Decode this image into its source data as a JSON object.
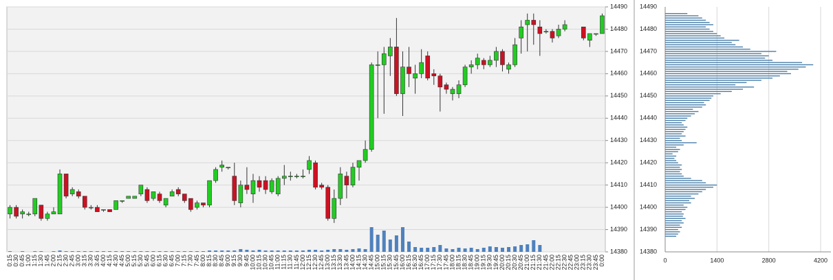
{
  "chart_data": [
    {
      "type": "candlestick",
      "categories": [
        "0:15",
        "0:30",
        "0:45",
        "1:00",
        "1:15",
        "1:30",
        "1:45",
        "2:00",
        "2:15",
        "2:30",
        "2:45",
        "3:00",
        "3:15",
        "3:30",
        "3:45",
        "4:00",
        "4:15",
        "4:30",
        "4:45",
        "5:00",
        "5:15",
        "5:30",
        "5:45",
        "6:00",
        "6:15",
        "6:30",
        "6:45",
        "7:00",
        "7:15",
        "7:30",
        "7:45",
        "8:00",
        "8:15",
        "8:30",
        "8:45",
        "9:00",
        "9:15",
        "9:30",
        "9:45",
        "10:00",
        "10:15",
        "10:30",
        "10:45",
        "11:00",
        "11:15",
        "11:30",
        "11:45",
        "12:00",
        "12:15",
        "12:30",
        "12:45",
        "13:00",
        "13:15",
        "13:30",
        "13:45",
        "14:00",
        "14:15",
        "14:30",
        "14:45",
        "15:00",
        "15:15",
        "15:30",
        "15:45",
        "16:00",
        "16:15",
        "16:30",
        "16:45",
        "17:00",
        "17:15",
        "17:30",
        "17:45",
        "18:00",
        "18:15",
        "18:30",
        "18:45",
        "19:00",
        "19:15",
        "19:30",
        "19:45",
        "20:00",
        "20:15",
        "20:30",
        "20:45",
        "21:00",
        "21:15",
        "21:30",
        "21:45",
        "22:00",
        "22:15",
        "22:30",
        "22:45",
        "23:00",
        "23:15",
        "23:30",
        "23:45",
        "0:00"
      ],
      "open": [
        14397,
        14400,
        14397,
        14397,
        14397,
        14401,
        14395,
        14397,
        14397,
        14415,
        14406,
        14407,
        14405,
        14400,
        14400,
        14399,
        14399,
        14399,
        14403,
        14404,
        14404,
        14406,
        14408,
        14404,
        14406,
        14401,
        14405,
        14408,
        14406,
        14404,
        14400,
        14402,
        14401,
        14412,
        14418,
        14418,
        14414,
        14402,
        14410,
        14406,
        14412,
        14412,
        14407,
        14406,
        14413,
        14414,
        14414,
        14414,
        14417,
        14420,
        14410,
        14409,
        14395,
        14404,
        14414,
        14410,
        14418,
        14421,
        14426,
        14464,
        14464,
        14468,
        14472,
        14451,
        14463,
        14458,
        14460,
        14468,
        14460,
        14459,
        14455,
        14451,
        14451,
        14455,
        14463,
        14464,
        14466,
        14464,
        14466,
        14470,
        14462,
        14464,
        14476,
        14482,
        14484,
        14481,
        14479,
        14479,
        14477,
        14480,
        null,
        null,
        14481,
        14475,
        14478,
        14478
      ],
      "high": [
        14401,
        14401,
        14399,
        14398,
        14404,
        14401,
        14398,
        14400,
        14417,
        14415,
        14409,
        14408,
        14405,
        14401,
        14401,
        14399,
        14399,
        14403,
        14403,
        14405,
        14405,
        14410,
        14409,
        14407,
        14407,
        14404,
        14408,
        14409,
        14406,
        14404,
        14403,
        14402,
        14412,
        14418,
        14421,
        14418,
        14420,
        14412,
        14418,
        14415,
        14414,
        14414,
        14413,
        14414,
        14419,
        14416,
        14415,
        14417,
        14423,
        14421,
        14411,
        14410,
        14408,
        14418,
        14416,
        14420,
        14421,
        14430,
        14465,
        14470,
        14472,
        14476,
        14485,
        14470,
        14472,
        14464,
        14471,
        14470,
        14462,
        14460,
        14456,
        14454,
        14457,
        14464,
        14466,
        14469,
        14467,
        14468,
        14472,
        14471,
        14465,
        14476,
        14484,
        14487,
        14487,
        14484,
        14480,
        14480,
        14482,
        14484,
        null,
        null,
        14481,
        14478,
        14478,
        14487
      ],
      "low": [
        14395,
        14395,
        14395,
        14396,
        14396,
        14394,
        14394,
        14397,
        14397,
        14404,
        14405,
        14404,
        14399,
        14399,
        14398,
        14398,
        14398,
        14399,
        14402,
        14404,
        14404,
        14405,
        14402,
        14403,
        14402,
        14400,
        14405,
        14405,
        14402,
        14398,
        14399,
        14400,
        14400,
        14411,
        14416,
        14417,
        14401,
        14400,
        14406,
        14402,
        14407,
        14406,
        14406,
        14405,
        14410,
        14412,
        14413,
        14413,
        14415,
        14408,
        14408,
        14394,
        14393,
        14401,
        14404,
        14409,
        14412,
        14420,
        14425,
        14440,
        14442,
        14459,
        14450,
        14441,
        14454,
        14451,
        14458,
        14457,
        14455,
        14443,
        14451,
        14448,
        14449,
        14454,
        14460,
        14462,
        14462,
        14463,
        14463,
        14461,
        14460,
        14463,
        14469,
        14470,
        14473,
        14468,
        14478,
        14474,
        14476,
        14479,
        null,
        null,
        14475,
        14472,
        14477,
        14478
      ],
      "close": [
        14400,
        14396,
        14398,
        14397,
        14404,
        14395,
        14397,
        14398,
        14415,
        14405,
        14408,
        14405,
        14400,
        14400,
        14398,
        14399,
        14398,
        14403,
        14403,
        14405,
        14405,
        14410,
        14403,
        14407,
        14403,
        14404,
        14407,
        14406,
        14403,
        14399,
        14402,
        14401,
        14412,
        14417,
        14419,
        14418,
        14403,
        14410,
        14408,
        14412,
        14409,
        14408,
        14412,
        14413,
        14414,
        14414,
        14414,
        14414,
        14421,
        14409,
        14409,
        14395,
        14404,
        14415,
        14410,
        14418,
        14421,
        14426,
        14464,
        14464,
        14469,
        14472,
        14451,
        14463,
        14460,
        14460,
        14465,
        14458,
        14459,
        14454,
        14453,
        14453,
        14455,
        14463,
        14464,
        14467,
        14464,
        14466,
        14470,
        14464,
        14464,
        14473,
        14481,
        14484,
        14482,
        14478,
        14479,
        14476,
        14480,
        14482,
        null,
        null,
        14476,
        14478,
        14478,
        14486
      ],
      "volume": [
        1,
        0,
        1,
        0,
        1,
        1,
        0,
        1,
        2,
        1,
        1,
        1,
        1,
        1,
        1,
        1,
        1,
        1,
        1,
        1,
        1,
        1,
        1,
        1,
        1,
        1,
        1,
        1,
        1,
        1,
        1,
        1,
        2,
        2,
        2,
        2,
        2,
        4,
        3,
        2,
        3,
        2,
        2,
        2,
        2,
        2,
        2,
        2,
        3,
        3,
        2,
        3,
        4,
        4,
        3,
        4,
        5,
        4,
        36,
        25,
        31,
        18,
        24,
        36,
        15,
        7,
        6,
        6,
        7,
        10,
        5,
        4,
        6,
        5,
        6,
        4,
        6,
        8,
        7,
        6,
        7,
        8,
        10,
        11,
        17,
        10,
        0,
        0,
        0,
        0,
        0,
        0,
        0,
        0,
        0,
        0
      ],
      "up_color": "#22cc22",
      "down_color": "#cc1122",
      "volume_color": "#4f81bd",
      "ylim": [
        14380,
        14490
      ],
      "yticks": [
        14380,
        14390,
        14400,
        14410,
        14420,
        14430,
        14440,
        14450,
        14460,
        14470,
        14480,
        14490
      ],
      "grid": true
    },
    {
      "type": "profile",
      "y": [
        14387,
        14388,
        14389,
        14390,
        14391,
        14392,
        14393,
        14394,
        14395,
        14396,
        14397,
        14398,
        14399,
        14400,
        14401,
        14402,
        14403,
        14404,
        14405,
        14406,
        14407,
        14408,
        14409,
        14410,
        14411,
        14412,
        14413,
        14414,
        14415,
        14416,
        14417,
        14418,
        14419,
        14420,
        14421,
        14422,
        14423,
        14424,
        14425,
        14426,
        14427,
        14428,
        14429,
        14430,
        14431,
        14432,
        14433,
        14434,
        14435,
        14436,
        14437,
        14438,
        14439,
        14440,
        14441,
        14442,
        14443,
        14444,
        14445,
        14446,
        14447,
        14448,
        14449,
        14450,
        14451,
        14452,
        14453,
        14454,
        14455,
        14456,
        14457,
        14458,
        14459,
        14460,
        14461,
        14462,
        14463,
        14464,
        14465,
        14466,
        14467,
        14468,
        14469,
        14470,
        14471,
        14472,
        14473,
        14474,
        14475,
        14476,
        14477,
        14478,
        14479,
        14480,
        14481,
        14482,
        14483,
        14484,
        14485,
        14486,
        14487
      ],
      "values": [
        300,
        350,
        400,
        350,
        450,
        400,
        500,
        450,
        550,
        480,
        500,
        450,
        550,
        600,
        500,
        700,
        650,
        800,
        700,
        900,
        1000,
        1100,
        1300,
        1400,
        1100,
        1000,
        700,
        500,
        450,
        400,
        450,
        400,
        450,
        350,
        300,
        250,
        300,
        200,
        350,
        400,
        300,
        500,
        850,
        450,
        400,
        550,
        450,
        500,
        550,
        600,
        500,
        450,
        550,
        600,
        700,
        800,
        900,
        750,
        1000,
        1100,
        1050,
        1200,
        1250,
        1300,
        1500,
        1800,
        2100,
        2400,
        1900,
        2200,
        2600,
        2900,
        3100,
        3400,
        3300,
        3600,
        3800,
        4000,
        3700,
        2900,
        2700,
        2800,
        2600,
        3000,
        2300,
        2100,
        1900,
        1800,
        2000,
        1600,
        1500,
        1400,
        1300,
        1200,
        1100,
        1300,
        1200,
        1100,
        1000,
        900,
        600
      ],
      "color": "#4a7ea8",
      "xlim": [
        0,
        4200
      ],
      "xticks": [
        0,
        1400,
        2800,
        4200
      ],
      "ylim": [
        14380,
        14490
      ],
      "yticks": [
        14380,
        14390,
        14400,
        14410,
        14420,
        14430,
        14440,
        14450,
        14460,
        14470,
        14480,
        14490
      ],
      "grid": true
    }
  ]
}
